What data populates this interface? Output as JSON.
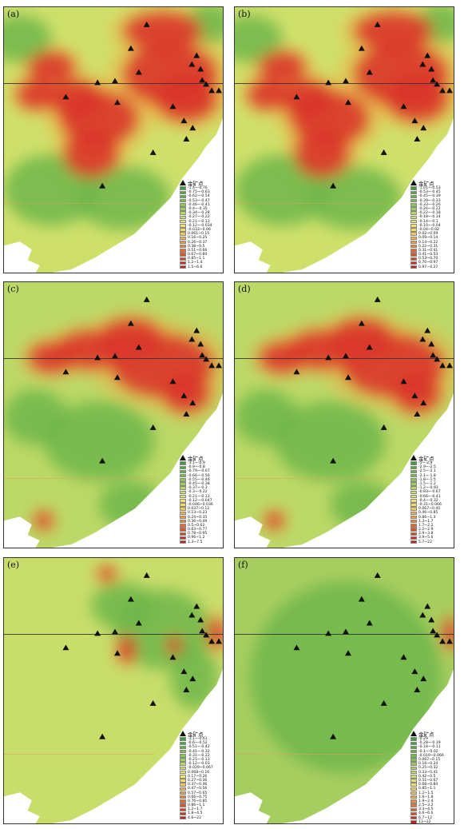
{
  "legend_title": "金矿点",
  "triangle_icon": "gold-deposit-triangle",
  "panels": [
    {
      "label": "(a)",
      "legend": [
        "-1.4~-0.76",
        "-0.75~-0.63",
        "-0.62~-0.54",
        "-0.53~-0.47",
        "-0.46~-0.41",
        "-0.4~-0.35",
        "-0.34~-0.28",
        "-0.27~-0.22",
        "-0.21~-0.13",
        "-0.12~-0.034",
        "-0.033~0.06",
        "0.061~0.15",
        "0.16~0.25",
        "0.26~0.37",
        "0.38~0.5",
        "0.51~0.66",
        "0.67~0.84",
        "0.85~1.1",
        "1.2~1.4",
        "1.5~6.6"
      ],
      "colors": [
        "#3e9a3a",
        "#4fa640",
        "#63b047",
        "#78ba4d",
        "#8dc455",
        "#a3cd5b",
        "#b8d663",
        "#cddd67",
        "#e1e36c",
        "#f0e36a",
        "#f7d95f",
        "#f5c653",
        "#f2b047",
        "#ef983d",
        "#e98036",
        "#e36a30",
        "#dd542b",
        "#d64127",
        "#cf3024",
        "#c52220"
      ]
    },
    {
      "label": "(b)",
      "legend": [
        "-1.01~-0.53",
        "-0.53~-0.45",
        "-0.45~-0.39",
        "-0.39~-0.33",
        "-0.33~-0.26",
        "-0.26~-0.22",
        "-0.22~-0.18",
        "-0.18~-0.14",
        "-0.14~-0.1",
        "-0.10~-0.04",
        "-0.04~0.02",
        "0.02~0.09",
        "0.09~0.14",
        "0.14~0.22",
        "0.22~0.31",
        "0.31~0.41",
        "0.41~0.53",
        "0.53~0.70",
        "0.70~0.97",
        "0.97~4.27"
      ],
      "colors": [
        "#3e9a3a",
        "#4fa640",
        "#63b047",
        "#78ba4d",
        "#8dc455",
        "#a3cd5b",
        "#b8d663",
        "#cddd67",
        "#e1e36c",
        "#f0e36a",
        "#f7d95f",
        "#f5c653",
        "#f2b047",
        "#ef983d",
        "#e98036",
        "#e36a30",
        "#dd542b",
        "#d64127",
        "#cf3024",
        "#c52220"
      ]
    },
    {
      "label": "(c)",
      "legend": [
        "-3.1~-0.9",
        "-0.9~-0.8",
        "-0.79~-0.67",
        "-0.66~-0.56",
        "-0.55~-0.46",
        "-0.45~-0.38",
        "-0.37~-0.3",
        "-0.3~-0.22",
        "-0.21~-0.13",
        "-0.12~-0.047",
        "-0.046~0.036",
        "0.037~0.12",
        "0.13~0.23",
        "0.24~0.35",
        "0.36~0.49",
        "0.5~0.62",
        "0.63~0.77",
        "0.78~0.95",
        "0.96~1.2",
        "1.3~7.5"
      ],
      "colors": [
        "#3e9a3a",
        "#4fa640",
        "#63b047",
        "#78ba4d",
        "#8dc455",
        "#a3cd5b",
        "#b8d663",
        "#cddd67",
        "#e1e36c",
        "#f0e36a",
        "#f7d95f",
        "#f5c653",
        "#f2b047",
        "#ef983d",
        "#e98036",
        "#e36a30",
        "#dd542b",
        "#d64127",
        "#cf3024",
        "#c52220"
      ]
    },
    {
      "label": "(d)",
      "legend": [
        "-5~-2.9",
        "-2.9~-2.5",
        "-2.5~-2.1",
        "-2.1~-1.8",
        "-1.8~-1.5",
        "-1.5~-1.2",
        "-1.2~-0.93",
        "-0.93~-0.67",
        "-0.66~-0.41",
        "-0.4~-0.32",
        "-0.31~0.066",
        "0.067~0.45",
        "0.46~0.85",
        "0.86~1.3",
        "1.3~1.7",
        "1.7~2.2",
        "2.2~2.9",
        "2.9~3.8",
        "3.9~5.6",
        "5.7~22"
      ],
      "colors": [
        "#3e9a3a",
        "#4fa640",
        "#63b047",
        "#78ba4d",
        "#8dc455",
        "#a3cd5b",
        "#b8d663",
        "#cddd67",
        "#e1e36c",
        "#f0e36a",
        "#f7d95f",
        "#f5c653",
        "#f2b047",
        "#ef983d",
        "#e98036",
        "#e36a30",
        "#dd542b",
        "#d64127",
        "#cf3024",
        "#c52220"
      ]
    },
    {
      "label": "(e)",
      "legend": [
        "-3.1~-0.61",
        "-0.6~-0.52",
        "-0.51~-0.42",
        "-0.41~-0.32",
        "-0.31~-0.22",
        "-0.21~-0.13",
        "-0.12~-0.03",
        "-0.029~0.067",
        "0.068~0.16",
        "0.17~0.26",
        "0.27~0.36",
        "0.37~0.46",
        "0.47~0.56",
        "0.57~0.65",
        "0.66~0.75",
        "0.76~0.85",
        "0.86~1.1",
        "1.2~1.7",
        "1.8~4.5",
        "4.6~22"
      ],
      "colors": [
        "#3e9a3a",
        "#4fa640",
        "#63b047",
        "#78ba4d",
        "#8dc455",
        "#a3cd5b",
        "#b8d663",
        "#cddd67",
        "#e1e36c",
        "#f0e36a",
        "#f7d95f",
        "#f5c653",
        "#f2b047",
        "#ef983d",
        "#e98036",
        "#e36a30",
        "#dd542b",
        "#d64127",
        "#cf3024",
        "#c52220"
      ]
    },
    {
      "label": "(f)",
      "legend": [
        "-0.29",
        "-0.28~-0.19",
        "-0.18~-0.11",
        "-0.1~-0.02",
        "-0.019~0.066",
        "0.067~0.15",
        "0.16~0.24",
        "0.25~0.32",
        "0.33~0.41",
        "0.42~0.5",
        "0.51~0.67",
        "0.68~0.84",
        "0.85~1.1",
        "1.2~1.5",
        "1.6~1.8",
        "1.9~2.4",
        "2.5~3.2",
        "3.3~4.5",
        "4.6~6.6",
        "6.7~12",
        "13~22"
      ],
      "colors": [
        "#3e9a3a",
        "#479f3d",
        "#53a742",
        "#62af47",
        "#72b74c",
        "#83c052",
        "#95c858",
        "#a8cf5d",
        "#bbd663",
        "#cddd67",
        "#dee26b",
        "#ecdf68",
        "#f3d05d",
        "#f0bb50",
        "#eea344",
        "#ea8b3b",
        "#e47334",
        "#de5c2d",
        "#d74629",
        "#ce3224",
        "#c52220"
      ]
    }
  ]
}
